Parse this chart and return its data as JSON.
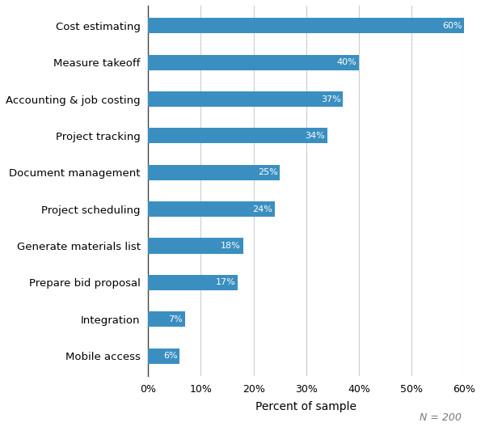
{
  "categories": [
    "Mobile access",
    "Integration",
    "Prepare bid proposal",
    "Generate materials list",
    "Project scheduling",
    "Document management",
    "Project tracking",
    "Accounting & job costing",
    "Measure takeoff",
    "Cost estimating"
  ],
  "values": [
    6,
    7,
    17,
    18,
    24,
    25,
    34,
    37,
    40,
    60
  ],
  "bar_color": "#3b8fc0",
  "label_color": "#ffffff",
  "label_fontsize": 8,
  "xlabel": "Percent of sample",
  "xlabel_fontsize": 10,
  "note": "N = 200",
  "note_fontsize": 9,
  "xlim": [
    0,
    60
  ],
  "xtick_values": [
    0,
    10,
    20,
    30,
    40,
    50,
    60
  ],
  "grid_color": "#cccccc",
  "background_color": "#ffffff",
  "bar_height": 0.42,
  "category_fontsize": 9.5,
  "spine_color": "#444444",
  "tick_fontsize": 9
}
